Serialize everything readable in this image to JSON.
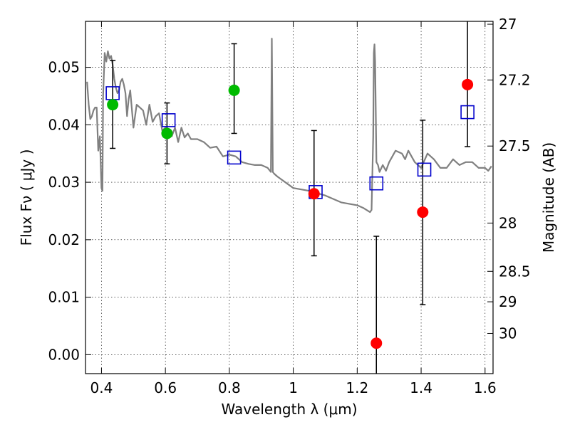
{
  "chart_data": {
    "type": "scatter",
    "xlabel": "Wavelength  λ (μm)",
    "ylabel": "Flux  Fν  ( μJy )",
    "y2label": "Magnitude (AB)",
    "xlim": [
      0.35,
      1.625
    ],
    "ylim": [
      -0.0033,
      0.058
    ],
    "xticks": [
      0.4,
      0.6,
      0.8,
      1.0,
      1.2,
      1.4,
      1.6
    ],
    "xtick_labels": [
      "0.4",
      "0.6",
      "0.8",
      "1",
      "1.2",
      "1.4",
      "1.6"
    ],
    "yticks": [
      0.0,
      0.01,
      0.02,
      0.03,
      0.04,
      0.05
    ],
    "ytick_labels": [
      "0.00",
      "0.01",
      "0.02",
      "0.03",
      "0.04",
      "0.05"
    ],
    "y2ticks": [
      {
        "label": "27",
        "flux": 0.0575
      },
      {
        "label": "27.2",
        "flux": 0.0478
      },
      {
        "label": "27.5",
        "flux": 0.0363
      },
      {
        "label": "28",
        "flux": 0.0229
      },
      {
        "label": "28.5",
        "flux": 0.0145
      },
      {
        "label": "29",
        "flux": 0.0092
      },
      {
        "label": "30",
        "flux": 0.0037
      }
    ],
    "grid": true,
    "colors": {
      "model": "#808080",
      "errorbar": "#000000",
      "model_flux_box": "#0000cc",
      "green_points": "#00bb00",
      "red_points": "#ff0000"
    },
    "model_spectrum": {
      "x": [
        0.355,
        0.36,
        0.365,
        0.37,
        0.375,
        0.38,
        0.385,
        0.39,
        0.395,
        0.4,
        0.403,
        0.405,
        0.41,
        0.415,
        0.42,
        0.425,
        0.43,
        0.435,
        0.44,
        0.445,
        0.45,
        0.455,
        0.46,
        0.465,
        0.47,
        0.475,
        0.48,
        0.485,
        0.49,
        0.5,
        0.51,
        0.52,
        0.53,
        0.54,
        0.55,
        0.56,
        0.57,
        0.58,
        0.59,
        0.6,
        0.61,
        0.62,
        0.63,
        0.64,
        0.65,
        0.66,
        0.67,
        0.68,
        0.7,
        0.72,
        0.74,
        0.76,
        0.78,
        0.8,
        0.82,
        0.84,
        0.86,
        0.88,
        0.9,
        0.92,
        0.93,
        0.933,
        0.936,
        0.94,
        0.95,
        1.0,
        1.05,
        1.1,
        1.15,
        1.2,
        1.22,
        1.24,
        1.245,
        1.25,
        1.252,
        1.254,
        1.256,
        1.26,
        1.265,
        1.27,
        1.28,
        1.29,
        1.3,
        1.32,
        1.34,
        1.35,
        1.36,
        1.38,
        1.4,
        1.42,
        1.44,
        1.46,
        1.48,
        1.5,
        1.52,
        1.54,
        1.56,
        1.58,
        1.6,
        1.61,
        1.62
      ],
      "y": [
        0.0475,
        0.0435,
        0.041,
        0.0415,
        0.0425,
        0.043,
        0.043,
        0.0355,
        0.038,
        0.029,
        0.0285,
        0.045,
        0.0525,
        0.051,
        0.0528,
        0.0515,
        0.052,
        0.0505,
        0.048,
        0.0465,
        0.0455,
        0.046,
        0.0475,
        0.048,
        0.047,
        0.0455,
        0.0415,
        0.0445,
        0.046,
        0.0395,
        0.0435,
        0.043,
        0.0425,
        0.04,
        0.0435,
        0.0405,
        0.0415,
        0.042,
        0.039,
        0.0395,
        0.0385,
        0.038,
        0.0395,
        0.037,
        0.0395,
        0.0378,
        0.0385,
        0.0375,
        0.0375,
        0.037,
        0.036,
        0.0362,
        0.0345,
        0.0348,
        0.0345,
        0.0335,
        0.0332,
        0.033,
        0.033,
        0.0325,
        0.0318,
        0.055,
        0.0318,
        0.0315,
        0.031,
        0.029,
        0.0285,
        0.0277,
        0.0265,
        0.026,
        0.0255,
        0.0248,
        0.0252,
        0.038,
        0.0525,
        0.054,
        0.051,
        0.0335,
        0.033,
        0.0318,
        0.033,
        0.032,
        0.0335,
        0.0355,
        0.035,
        0.034,
        0.0355,
        0.0335,
        0.0325,
        0.035,
        0.034,
        0.0325,
        0.0325,
        0.034,
        0.033,
        0.0335,
        0.0335,
        0.0325,
        0.0325,
        0.032,
        0.0328
      ]
    },
    "model_flux_boxes": {
      "x": [
        0.435,
        0.61,
        0.815,
        1.07,
        1.26,
        1.41,
        1.545
      ],
      "y": [
        0.0455,
        0.0408,
        0.0343,
        0.0283,
        0.0298,
        0.0322,
        0.0422
      ]
    },
    "observed_green": {
      "x": [
        0.435,
        0.605,
        0.815
      ],
      "y": [
        0.0435,
        0.0385,
        0.046
      ],
      "yerr_low": [
        0.0359,
        0.0332,
        0.0385
      ],
      "yerr_high": [
        0.0512,
        0.0438,
        0.0541
      ]
    },
    "observed_red": {
      "x": [
        1.065,
        1.26,
        1.405,
        1.545
      ],
      "y": [
        0.028,
        0.002,
        0.0248,
        0.047
      ],
      "yerr_low": [
        0.0172,
        -0.0033,
        0.0087,
        0.0362
      ],
      "yerr_high": [
        0.039,
        0.0206,
        0.0408,
        0.058
      ]
    }
  }
}
